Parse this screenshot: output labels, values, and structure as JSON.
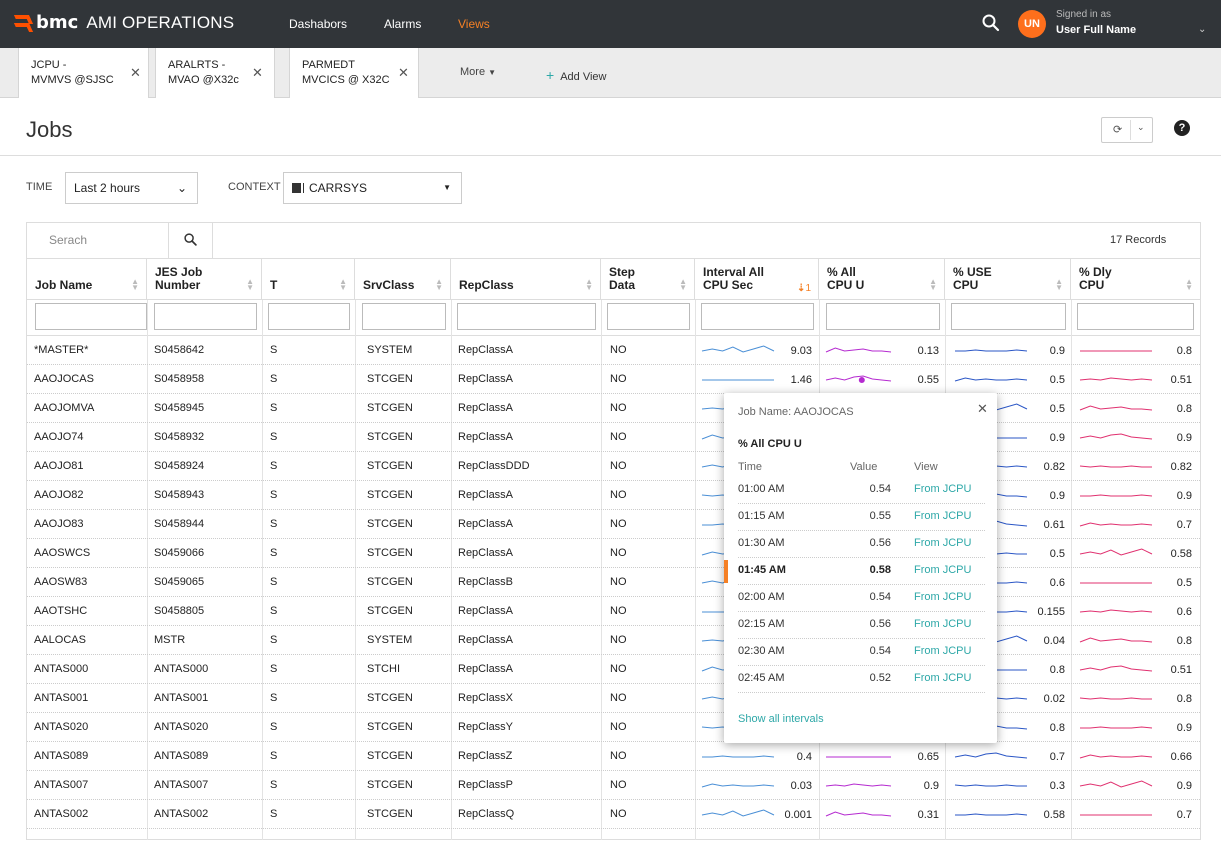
{
  "app": {
    "brand": "bmc",
    "title": "AMI OPERATIONS"
  },
  "nav": [
    {
      "label": "Dashabors",
      "active": false
    },
    {
      "label": "Alarms",
      "active": false
    },
    {
      "label": "Views",
      "active": true
    }
  ],
  "user": {
    "initials": "UN",
    "signed_in_as": "Signed in as",
    "name": "User Full Name"
  },
  "view_tabs": [
    {
      "label": "JCPU -\nMVMVS @SJSC"
    },
    {
      "label": "ARALRTS -\nMVAO @X32c"
    },
    {
      "label": "PARMEDT\nMVCICS @ X32C"
    }
  ],
  "more_label": "More",
  "add_view_label": "Add View",
  "page_title": "Jobs",
  "filters": {
    "time_label": "TIME",
    "time_value": "Last 2 hours",
    "context_label": "CONTEXT",
    "context_value": "CARRSYS"
  },
  "search_placeholder": "Serach",
  "records": "17 Records",
  "columns": [
    {
      "label": "Job Name"
    },
    {
      "label": "JES Job\nNumber"
    },
    {
      "label": "T"
    },
    {
      "label": "SrvClass"
    },
    {
      "label": "RepClass"
    },
    {
      "label": "Step\nData"
    },
    {
      "label": "Interval All\nCPU Sec",
      "sort_order": "1"
    },
    {
      "label": "% All\nCPU U"
    },
    {
      "label": "% USE\nCPU"
    },
    {
      "label": "% Dly\nCPU"
    }
  ],
  "rows": [
    {
      "job": "*MASTER*",
      "jes": "S0458642",
      "t": "S",
      "srv": "SYSTEM",
      "rep": "RepClassA",
      "step": "NO",
      "int": "9.03",
      "all": "0.13",
      "use": "0.9",
      "dly": "0.8"
    },
    {
      "job": "AAOJOCAS",
      "jes": "S0458958",
      "t": "S",
      "srv": "STCGEN",
      "rep": "RepClassA",
      "step": "NO",
      "int": "1.46",
      "all": "0.55",
      "use": "0.5",
      "dly": "0.51"
    },
    {
      "job": "AAOJOMVA",
      "jes": "S0458945",
      "t": "S",
      "srv": "STCGEN",
      "rep": "RepClassA",
      "step": "NO",
      "int": "",
      "all": "",
      "use": "0.5",
      "dly": "0.8"
    },
    {
      "job": "AAOJO74",
      "jes": "S0458932",
      "t": "S",
      "srv": "STCGEN",
      "rep": "RepClassA",
      "step": "NO",
      "int": "",
      "all": "",
      "use": "0.9",
      "dly": "0.9"
    },
    {
      "job": "AAOJO81",
      "jes": "S0458924",
      "t": "S",
      "srv": "STCGEN",
      "rep": "RepClassDDD",
      "step": "NO",
      "int": "",
      "all": "",
      "use": "0.82",
      "dly": "0.82"
    },
    {
      "job": "AAOJO82",
      "jes": "S0458943",
      "t": "S",
      "srv": "STCGEN",
      "rep": "RepClassA",
      "step": "NO",
      "int": "",
      "all": "",
      "use": "0.9",
      "dly": "0.9"
    },
    {
      "job": "AAOJO83",
      "jes": "S0458944",
      "t": "S",
      "srv": "STCGEN",
      "rep": "RepClassA",
      "step": "NO",
      "int": "",
      "all": "",
      "use": "0.61",
      "dly": "0.7"
    },
    {
      "job": "AAOSWCS",
      "jes": "S0459066",
      "t": "S",
      "srv": "STCGEN",
      "rep": "RepClassA",
      "step": "NO",
      "int": "",
      "all": "",
      "use": "0.5",
      "dly": "0.58"
    },
    {
      "job": "AAOSW83",
      "jes": "S0459065",
      "t": "S",
      "srv": "STCGEN",
      "rep": "RepClassB",
      "step": "NO",
      "int": "",
      "all": "",
      "use": "0.6",
      "dly": "0.5"
    },
    {
      "job": "AAOTSHC",
      "jes": "S0458805",
      "t": "S",
      "srv": "STCGEN",
      "rep": "RepClassA",
      "step": "NO",
      "int": "",
      "all": "",
      "use": "0.155",
      "dly": "0.6"
    },
    {
      "job": "AALOCAS",
      "jes": "MSTR",
      "t": "S",
      "srv": "SYSTEM",
      "rep": "RepClassA",
      "step": "NO",
      "int": "",
      "all": "",
      "use": "0.04",
      "dly": "0.8"
    },
    {
      "job": "ANTAS000",
      "jes": "ANTAS000",
      "t": "S",
      "srv": "STCHI",
      "rep": "RepClassA",
      "step": "NO",
      "int": "",
      "all": "",
      "use": "0.8",
      "dly": "0.51"
    },
    {
      "job": "ANTAS001",
      "jes": "ANTAS001",
      "t": "S",
      "srv": "STCGEN",
      "rep": "RepClassX",
      "step": "NO",
      "int": "",
      "all": "",
      "use": "0.02",
      "dly": "0.8"
    },
    {
      "job": "ANTAS020",
      "jes": "ANTAS020",
      "t": "S",
      "srv": "STCGEN",
      "rep": "RepClassY",
      "step": "NO",
      "int": "",
      "all": "",
      "use": "0.8",
      "dly": "0.9"
    },
    {
      "job": "ANTAS089",
      "jes": "ANTAS089",
      "t": "S",
      "srv": "STCGEN",
      "rep": "RepClassZ",
      "step": "NO",
      "int": "0.4",
      "all": "0.65",
      "use": "0.7",
      "dly": "0.66"
    },
    {
      "job": "ANTAS007",
      "jes": "ANTAS007",
      "t": "S",
      "srv": "STCGEN",
      "rep": "RepClassP",
      "step": "NO",
      "int": "0.03",
      "all": "0.9",
      "use": "0.3",
      "dly": "0.9"
    },
    {
      "job": "ANTAS002",
      "jes": "ANTAS002",
      "t": "S",
      "srv": "STCGEN",
      "rep": "RepClassQ",
      "step": "NO",
      "int": "0.001",
      "all": "0.31",
      "use": "0.58",
      "dly": "0.7"
    }
  ],
  "popup": {
    "title": "Job Name: AAOJOCAS",
    "metric": "% All CPU U",
    "headers": [
      "Time",
      "Value",
      "View"
    ],
    "rows": [
      {
        "time": "01:00 AM",
        "value": "0.54",
        "view": "From JCPU",
        "highlight": false
      },
      {
        "time": "01:15 AM",
        "value": "0.55",
        "view": "From JCPU",
        "highlight": false
      },
      {
        "time": "01:30 AM",
        "value": "0.56",
        "view": "From JCPU",
        "highlight": false
      },
      {
        "time": "01:45 AM",
        "value": "0.58",
        "view": "From JCPU",
        "highlight": true
      },
      {
        "time": "02:00 AM",
        "value": "0.54",
        "view": "From JCPU",
        "highlight": false
      },
      {
        "time": "02:15 AM",
        "value": "0.56",
        "view": "From JCPU",
        "highlight": false
      },
      {
        "time": "02:30 AM",
        "value": "0.54",
        "view": "From JCPU",
        "highlight": false
      },
      {
        "time": "02:45 AM",
        "value": "0.52",
        "view": "From JCPU",
        "highlight": false
      }
    ],
    "show_all": "Show all intervals"
  },
  "colors": {
    "topbar": "#313539",
    "accent": "#f58025",
    "teal": "#2ea8a8",
    "interval_line": "#4a8fd6",
    "allcpu_line": "#b52ad0",
    "use_line": "#2a56c6",
    "dly_line": "#e0306f"
  }
}
